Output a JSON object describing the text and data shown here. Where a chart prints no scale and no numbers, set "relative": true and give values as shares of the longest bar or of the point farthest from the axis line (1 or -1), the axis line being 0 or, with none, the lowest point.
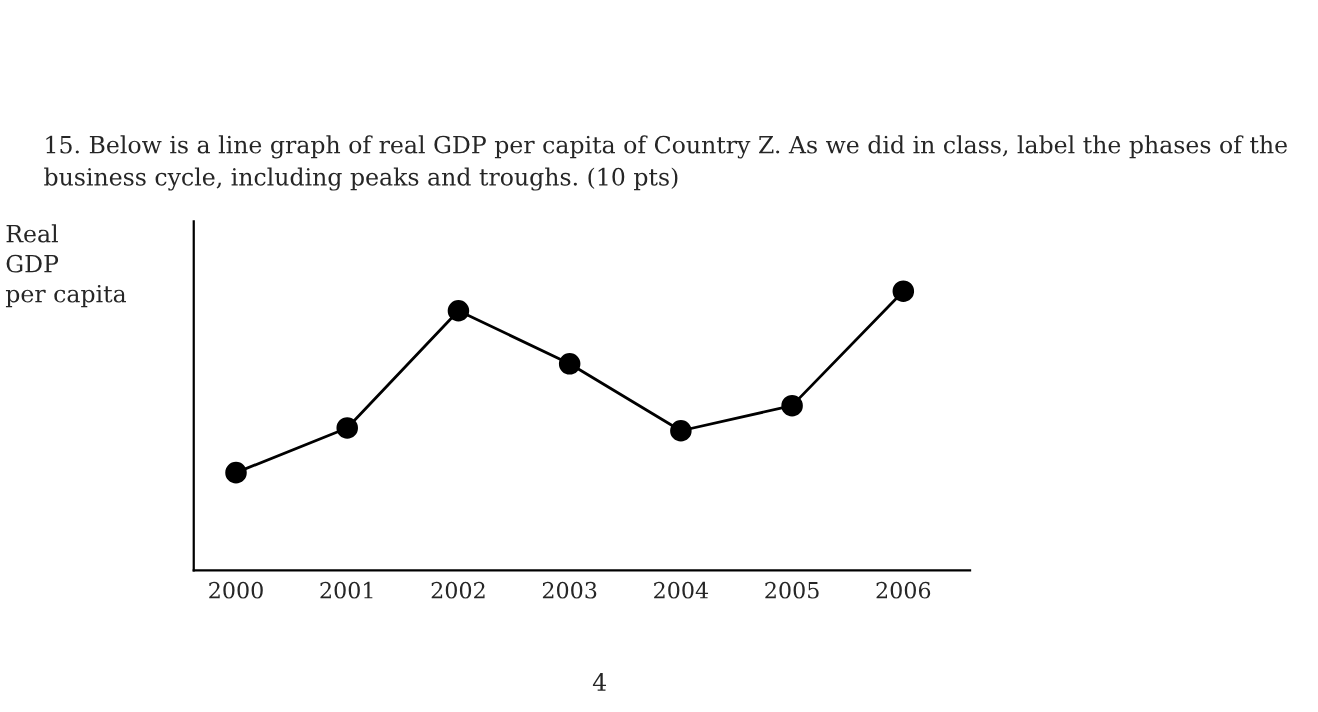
{
  "chart_data": {
    "type": "line",
    "title": "15. Below is a line graph of real GDP per capita of Country Z. As we did in class, label the phases of the business cycle, including peaks and troughs. (10 pts)",
    "ylabel": "Real\nGDP\nper capita",
    "categories": [
      "2000",
      "2001",
      "2002",
      "2003",
      "2004",
      "2005",
      "2006"
    ],
    "series": [
      {
        "color": "#000000",
        "values": [
          0.35,
          0.51,
          0.93,
          0.74,
          0.5,
          0.59,
          1.0
        ]
      }
    ],
    "relative": true,
    "marker": "circle",
    "line_style": "solid",
    "grid": false,
    "legend": false,
    "annotations": [
      "4"
    ]
  }
}
